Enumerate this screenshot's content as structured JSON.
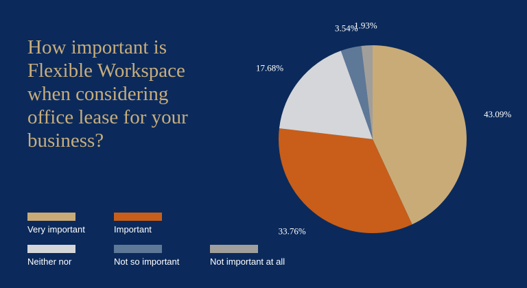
{
  "chart_data": {
    "type": "pie",
    "title_lines": [
      "How important is",
      "Flexible Workspace",
      "when considering",
      "office lease for your",
      "business?"
    ],
    "slices": [
      {
        "label": "Very important",
        "value": 43.09,
        "value_label": "43.09%",
        "color": "#c9ab78"
      },
      {
        "label": "Important",
        "value": 33.76,
        "value_label": "33.76%",
        "color": "#c85e19"
      },
      {
        "label": "Neither nor",
        "value": 17.68,
        "value_label": "17.68%",
        "color": "#d4d6d9"
      },
      {
        "label": "Not so important",
        "value": 3.54,
        "value_label": "3.54%",
        "color": "#5e7898"
      },
      {
        "label": "Not important at all",
        "value": 1.93,
        "value_label": "1.93%",
        "color": "#a19f9b"
      }
    ],
    "start": "12 o'clock",
    "direction": "clockwise",
    "legend_position": "bottom-left"
  }
}
